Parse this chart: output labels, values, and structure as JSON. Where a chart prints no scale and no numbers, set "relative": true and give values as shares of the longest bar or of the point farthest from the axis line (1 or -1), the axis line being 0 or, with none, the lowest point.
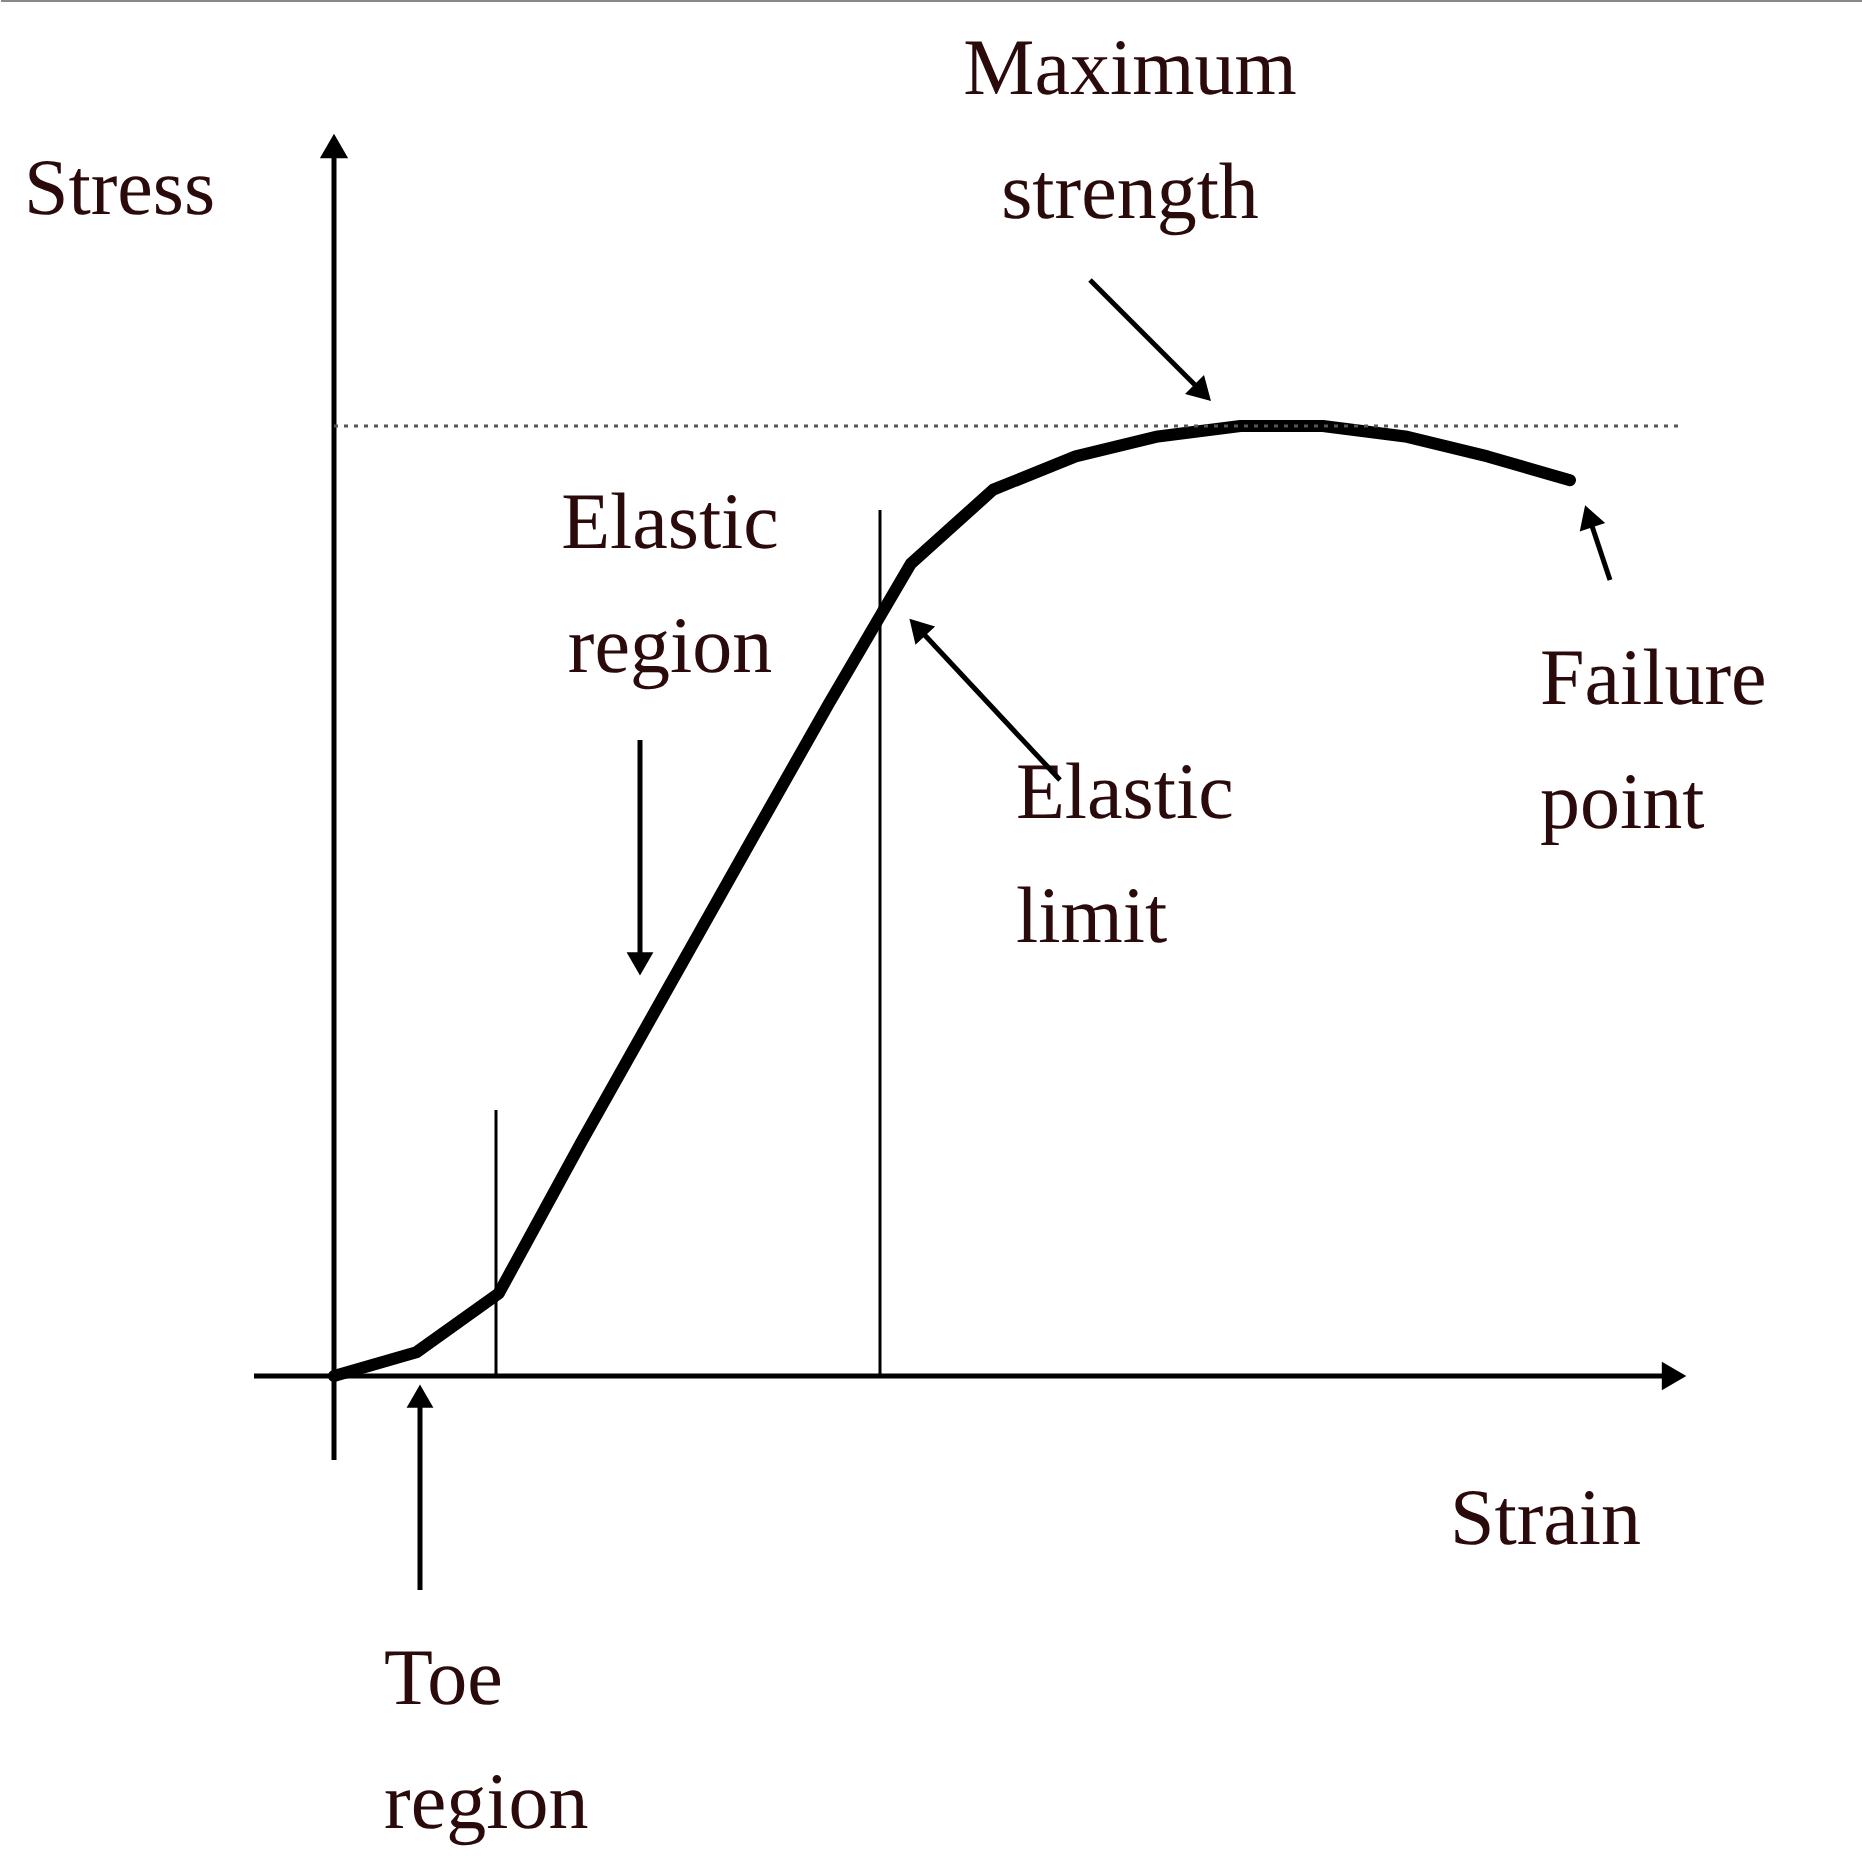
{
  "chart_data": {
    "type": "line",
    "relative": true,
    "xlabel": "Strain",
    "ylabel": "Stress",
    "categories": [
      null,
      null,
      null,
      null,
      null,
      null,
      null,
      null,
      null,
      null,
      null,
      null,
      null,
      null,
      null,
      null
    ],
    "series": [
      {
        "color": "#000000",
        "line_style": "solid",
        "values": [
          0,
          0.025,
          0.087,
          0.246,
          0.4,
          0.554,
          0.707,
          0.855,
          0.933,
          0.968,
          0.989,
          1.0,
          1.0,
          0.989,
          0.968,
          0.943
        ]
      }
    ],
    "ref_lines": [
      {
        "axis": "y",
        "value": 1.0,
        "label": null,
        "color": "#555555",
        "line_style": "dotted"
      }
    ],
    "annotations": [
      "Maximum strength",
      "Elastic region",
      "Elastic limit",
      "Failure point",
      "Toe region"
    ]
  }
}
